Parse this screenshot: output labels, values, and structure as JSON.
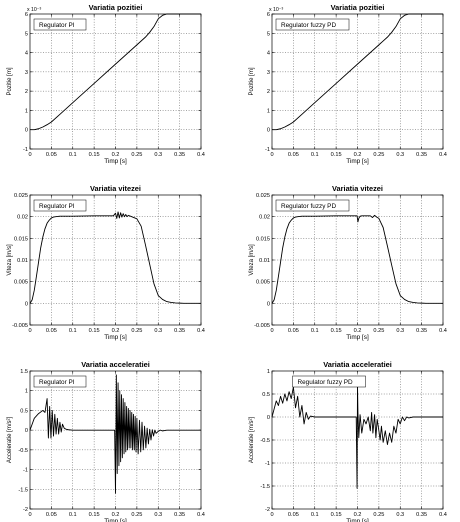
{
  "chart_data": [
    {
      "type": "line",
      "title": "Variatia pozitiei",
      "xlabel": "Timp [s]",
      "ylabel": "Pozitie [m]",
      "legend": "Regulator PI",
      "legend_position": "top-left",
      "y_exponent": "x 10⁻³",
      "grid": true,
      "xlim": [
        0,
        0.4
      ],
      "ylim": [
        -1,
        6
      ],
      "xticks": [
        "0",
        "0.05",
        "0.1",
        "0.15",
        "0.2",
        "0.25",
        "0.3",
        "0.35",
        "0.4"
      ],
      "yticks": [
        "-1",
        "0",
        "1",
        "2",
        "3",
        "4",
        "5",
        "6"
      ],
      "series": [
        {
          "x": [
            0,
            0.01,
            0.02,
            0.03,
            0.04,
            0.05,
            0.07,
            0.1,
            0.15,
            0.2,
            0.25,
            0.27,
            0.28,
            0.29,
            0.3,
            0.31,
            0.32,
            0.4
          ],
          "y": [
            0,
            0.003,
            0.05,
            0.14,
            0.26,
            0.4,
            0.8,
            1.4,
            2.4,
            3.4,
            4.4,
            4.8,
            5.05,
            5.35,
            5.75,
            5.93,
            6.0,
            6.0
          ]
        }
      ]
    },
    {
      "type": "line",
      "title": "Variatia pozitiei",
      "xlabel": "Timp [s]",
      "ylabel": "Pozitie [m]",
      "legend": "Regulator fuzzy PD",
      "legend_position": "top-left",
      "y_exponent": "x 10⁻³",
      "grid": true,
      "xlim": [
        0,
        0.4
      ],
      "ylim": [
        -1,
        6
      ],
      "xticks": [
        "0",
        "0.05",
        "0.1",
        "0.15",
        "0.2",
        "0.25",
        "0.3",
        "0.35",
        "0.4"
      ],
      "yticks": [
        "-1",
        "0",
        "1",
        "2",
        "3",
        "4",
        "5",
        "6"
      ],
      "series": [
        {
          "x": [
            0,
            0.01,
            0.02,
            0.03,
            0.04,
            0.05,
            0.07,
            0.1,
            0.15,
            0.2,
            0.25,
            0.27,
            0.28,
            0.29,
            0.3,
            0.31,
            0.32,
            0.4
          ],
          "y": [
            0,
            0.003,
            0.05,
            0.14,
            0.26,
            0.4,
            0.8,
            1.4,
            2.4,
            3.4,
            4.4,
            4.8,
            5.05,
            5.35,
            5.75,
            5.93,
            6.0,
            6.0
          ]
        }
      ]
    },
    {
      "type": "line",
      "title": "Variatia vitezei",
      "xlabel": "Timp [s]",
      "ylabel": "Viteza [m/s]",
      "legend": "Regulator PI",
      "legend_position": "top-left",
      "grid": true,
      "xlim": [
        0,
        0.4
      ],
      "ylim": [
        -0.005,
        0.025
      ],
      "xticks": [
        "0",
        "0.05",
        "0.1",
        "0.15",
        "0.2",
        "0.25",
        "0.3",
        "0.35",
        "0.4"
      ],
      "yticks": [
        "-0.005",
        "0",
        "0.005",
        "0.01",
        "0.015",
        "0.02",
        "0.025"
      ],
      "series": [
        {
          "x": [
            0,
            0.005,
            0.01,
            0.015,
            0.02,
            0.025,
            0.03,
            0.035,
            0.04,
            0.045,
            0.05,
            0.055,
            0.06,
            0.07,
            0.08,
            0.1,
            0.15,
            0.195,
            0.2,
            0.203,
            0.206,
            0.209,
            0.212,
            0.215,
            0.218,
            0.221,
            0.224,
            0.227,
            0.23,
            0.235,
            0.24,
            0.25,
            0.26,
            0.27,
            0.28,
            0.29,
            0.3,
            0.31,
            0.32,
            0.33,
            0.34,
            0.35,
            0.36,
            0.4
          ],
          "y": [
            0,
            0.0008,
            0.003,
            0.0062,
            0.0095,
            0.0128,
            0.0153,
            0.0172,
            0.0185,
            0.0192,
            0.0197,
            0.0199,
            0.02,
            0.0201,
            0.0201,
            0.0201,
            0.0202,
            0.0202,
            0.0208,
            0.0196,
            0.0211,
            0.0197,
            0.0209,
            0.0199,
            0.0207,
            0.02,
            0.0205,
            0.02,
            0.0203,
            0.0201,
            0.0199,
            0.0195,
            0.0178,
            0.0135,
            0.009,
            0.0045,
            0.0018,
            0.0009,
            0.0004,
            0.0002,
            0.0001,
            5e-05,
            0,
            0
          ]
        }
      ]
    },
    {
      "type": "line",
      "title": "Variatia vitezei",
      "xlabel": "Timp [s]",
      "ylabel": "Viteza [m/s]",
      "legend": "Regulator fuzzy PD",
      "legend_position": "top-left",
      "grid": true,
      "xlim": [
        0,
        0.4
      ],
      "ylim": [
        -0.005,
        0.025
      ],
      "xticks": [
        "0",
        "0.05",
        "0.1",
        "0.15",
        "0.2",
        "0.25",
        "0.3",
        "0.35",
        "0.4"
      ],
      "yticks": [
        "-0.005",
        "0",
        "0.005",
        "0.01",
        "0.015",
        "0.02",
        "0.025"
      ],
      "series": [
        {
          "x": [
            0,
            0.005,
            0.01,
            0.015,
            0.02,
            0.025,
            0.03,
            0.035,
            0.04,
            0.045,
            0.05,
            0.055,
            0.06,
            0.07,
            0.08,
            0.1,
            0.15,
            0.195,
            0.199,
            0.201,
            0.203,
            0.206,
            0.21,
            0.22,
            0.23,
            0.235,
            0.24,
            0.245,
            0.25,
            0.26,
            0.27,
            0.28,
            0.29,
            0.3,
            0.31,
            0.32,
            0.33,
            0.34,
            0.35,
            0.36,
            0.4
          ],
          "y": [
            0,
            0.0008,
            0.003,
            0.0062,
            0.0095,
            0.0128,
            0.0153,
            0.0172,
            0.0185,
            0.0192,
            0.0197,
            0.0199,
            0.02,
            0.0201,
            0.0201,
            0.0201,
            0.0202,
            0.0202,
            0.0202,
            0.0188,
            0.0196,
            0.0201,
            0.0202,
            0.0202,
            0.0202,
            0.0198,
            0.0203,
            0.0199,
            0.0196,
            0.0175,
            0.0132,
            0.0088,
            0.0045,
            0.0018,
            0.0009,
            0.0004,
            0.0002,
            0.0001,
            5e-05,
            0,
            0
          ]
        }
      ]
    },
    {
      "type": "line",
      "title": "Variatia acceleratiei",
      "xlabel": "Timp [s]",
      "ylabel": "Acceleratie [m/s²]",
      "legend": "Regulator PI",
      "legend_position": "top-left",
      "grid": true,
      "xlim": [
        0,
        0.4
      ],
      "ylim": [
        -2,
        1.5
      ],
      "xticks": [
        "0",
        "0.05",
        "0.1",
        "0.15",
        "0.2",
        "0.25",
        "0.3",
        "0.35",
        "0.4"
      ],
      "yticks": [
        "-2",
        "-1.5",
        "-1",
        "-0.5",
        "0",
        "0.5",
        "1",
        "1.5"
      ],
      "series": [
        {
          "x": [
            0,
            0.01,
            0.02,
            0.03,
            0.035,
            0.04,
            0.043,
            0.046,
            0.049,
            0.052,
            0.055,
            0.058,
            0.061,
            0.064,
            0.067,
            0.07,
            0.073,
            0.076,
            0.08,
            0.085,
            0.09,
            0.1,
            0.15,
            0.19,
            0.198,
            0.2,
            0.202,
            0.204,
            0.206,
            0.208,
            0.21,
            0.212,
            0.214,
            0.216,
            0.218,
            0.22,
            0.222,
            0.224,
            0.226,
            0.228,
            0.23,
            0.232,
            0.234,
            0.236,
            0.238,
            0.24,
            0.242,
            0.244,
            0.246,
            0.248,
            0.25,
            0.253,
            0.256,
            0.259,
            0.262,
            0.265,
            0.268,
            0.271,
            0.274,
            0.277,
            0.28,
            0.283,
            0.286,
            0.289,
            0.292,
            0.295,
            0.3,
            0.305,
            0.31,
            0.32,
            0.33,
            0.34,
            0.35,
            0.4
          ],
          "y": [
            0,
            0.3,
            0.42,
            0.5,
            0.45,
            0.8,
            -0.2,
            0.6,
            -0.2,
            0.5,
            -0.15,
            0.4,
            -0.1,
            0.3,
            -0.1,
            0.2,
            -0.05,
            0.15,
            0.05,
            0.02,
            0.01,
            0,
            0,
            0,
            0,
            -1.6,
            1.4,
            -1.1,
            1.2,
            -0.9,
            1.0,
            -0.8,
            0.9,
            -0.7,
            0.8,
            -0.6,
            0.7,
            -0.55,
            0.6,
            -0.5,
            0.55,
            -0.45,
            0.5,
            -0.45,
            0.45,
            -0.5,
            0.4,
            -0.5,
            0.35,
            -0.55,
            0.3,
            -0.6,
            0.25,
            -0.55,
            0.2,
            -0.5,
            0.1,
            -0.45,
            0.05,
            -0.35,
            0.02,
            -0.25,
            0.01,
            -0.15,
            0,
            -0.08,
            -0.03,
            0,
            -0.02,
            0,
            0,
            0,
            0,
            0
          ]
        }
      ]
    },
    {
      "type": "line",
      "title": "Variatia acceleratiei",
      "xlabel": "Timp [s]",
      "ylabel": "Acceleratie [m/s²]",
      "legend": "Regulator fuzzy PD",
      "legend_position": "top-right",
      "grid": true,
      "xlim": [
        0,
        0.4
      ],
      "ylim": [
        -2,
        1
      ],
      "xticks": [
        "0",
        "0.05",
        "0.1",
        "0.15",
        "0.2",
        "0.25",
        "0.3",
        "0.35",
        "0.4"
      ],
      "yticks": [
        "-2",
        "-1.5",
        "-1",
        "-0.5",
        "0",
        "0.5",
        "1"
      ],
      "series": [
        {
          "x": [
            0,
            0.01,
            0.015,
            0.02,
            0.025,
            0.03,
            0.035,
            0.04,
            0.045,
            0.05,
            0.055,
            0.06,
            0.065,
            0.07,
            0.075,
            0.08,
            0.085,
            0.09,
            0.1,
            0.15,
            0.19,
            0.197,
            0.199,
            0.2,
            0.201,
            0.203,
            0.206,
            0.21,
            0.215,
            0.22,
            0.225,
            0.23,
            0.233,
            0.236,
            0.24,
            0.243,
            0.246,
            0.25,
            0.253,
            0.256,
            0.26,
            0.265,
            0.27,
            0.275,
            0.28,
            0.285,
            0.29,
            0.295,
            0.3,
            0.305,
            0.31,
            0.315,
            0.32,
            0.33,
            0.34,
            0.35,
            0.4
          ],
          "y": [
            0,
            0.35,
            0.25,
            0.45,
            0.3,
            0.5,
            0.35,
            0.55,
            0.4,
            0.65,
            0.2,
            0.45,
            0.0,
            0.25,
            -0.15,
            0.1,
            -0.05,
            0.02,
            0,
            0,
            0,
            0,
            -1.55,
            0.7,
            0.1,
            -0.45,
            0.05,
            -0.35,
            -0.05,
            -0.15,
            0.0,
            -0.3,
            0.1,
            -0.35,
            0.05,
            -0.45,
            -0.05,
            -0.3,
            -0.5,
            -0.2,
            -0.55,
            -0.3,
            -0.6,
            -0.35,
            -0.55,
            -0.2,
            -0.35,
            -0.05,
            -0.15,
            0.0,
            -0.08,
            0.0,
            -0.02,
            0,
            0,
            0,
            0
          ]
        }
      ]
    }
  ]
}
